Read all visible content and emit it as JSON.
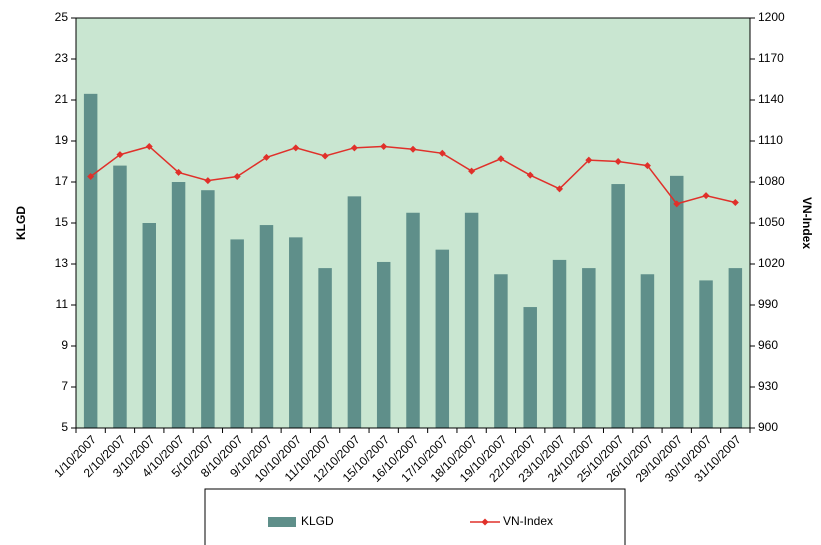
{
  "chart_data": {
    "type": "bar",
    "categories": [
      "1/10/2007",
      "2/10/2007",
      "3/10/2007",
      "4/10/2007",
      "5/10/2007",
      "8/10/2007",
      "9/10/2007",
      "10/10/2007",
      "11/10/2007",
      "12/10/2007",
      "15/10/2007",
      "16/10/2007",
      "17/10/2007",
      "18/10/2007",
      "19/10/2007",
      "22/10/2007",
      "23/10/2007",
      "24/10/2007",
      "25/10/2007",
      "26/10/2007",
      "29/10/2007",
      "30/10/2007",
      "31/10/2007"
    ],
    "series": [
      {
        "name": "KLGD",
        "type": "bar",
        "axis": "y",
        "color": "#5f8f8a",
        "values": [
          21.3,
          17.8,
          15.0,
          17.0,
          16.6,
          14.2,
          14.9,
          14.3,
          12.8,
          16.3,
          13.1,
          15.5,
          13.7,
          15.5,
          12.5,
          10.9,
          13.2,
          12.8,
          16.9,
          12.5,
          17.3,
          12.2,
          12.8
        ]
      },
      {
        "name": "VN-Index",
        "type": "line",
        "axis": "y2",
        "color": "#e0302a",
        "values": [
          1084,
          1100,
          1106,
          1087,
          1081,
          1084,
          1098,
          1105,
          1099,
          1105,
          1106,
          1104,
          1101,
          1088,
          1097,
          1085,
          1075,
          1096,
          1095,
          1092,
          1064,
          1070,
          1065
        ]
      }
    ],
    "ylabel": "KLGD",
    "y2label": "VN-Index",
    "ylim": [
      5,
      25
    ],
    "yticks": [
      5,
      7,
      9,
      11,
      13,
      15,
      17,
      19,
      21,
      23,
      25
    ],
    "y2lim": [
      900,
      1200
    ],
    "y2ticks": [
      900,
      930,
      960,
      990,
      1020,
      1050,
      1080,
      1110,
      1140,
      1170,
      1200
    ],
    "plot_background": "#c9e6d1"
  }
}
